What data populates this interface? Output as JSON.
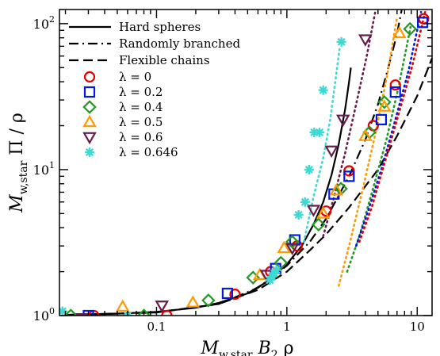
{
  "chart_data": {
    "type": "scatter",
    "xscale": "log",
    "yscale": "log",
    "xlim": [
      0.018,
      13
    ],
    "ylim": [
      1,
      125
    ],
    "grid": false,
    "legend_position": "top-left",
    "x_ticks": [
      {
        "value": 0.1,
        "label": "0.1"
      },
      {
        "value": 1,
        "label": "1"
      },
      {
        "value": 10,
        "label": "10"
      }
    ],
    "y_ticks": [
      {
        "value": 1,
        "base": "10",
        "exp": "0"
      },
      {
        "value": 10,
        "base": "10",
        "exp": "1"
      },
      {
        "value": 100,
        "base": "10",
        "exp": "2"
      }
    ],
    "xlabel": {
      "main": "M",
      "sub": "w,star",
      "rest1": " B",
      "sub2": "2",
      "rest2": " ρ"
    },
    "ylabel": {
      "main": "M",
      "sub": "w,star",
      "rest": " Π / ρ"
    },
    "lines": [
      {
        "name": "Hard spheres",
        "style": "solid",
        "x": [
          0.02,
          0.05,
          0.1,
          0.2,
          0.3,
          0.5,
          0.7,
          1.0,
          1.3,
          1.6,
          1.9,
          2.2,
          2.5,
          2.8,
          3.0,
          3.1
        ],
        "y": [
          1.01,
          1.03,
          1.06,
          1.13,
          1.22,
          1.42,
          1.7,
          2.25,
          3.0,
          4.2,
          6.0,
          9.2,
          15,
          26,
          40,
          50
        ]
      },
      {
        "name": "Randomly branched",
        "style": "dashdot",
        "x": [
          0.02,
          0.1,
          0.3,
          0.6,
          1.0,
          1.5,
          2.0,
          3.0,
          4.0,
          5.0,
          6.0,
          7.0,
          7.6
        ],
        "y": [
          1.01,
          1.05,
          1.2,
          1.55,
          2.2,
          3.2,
          4.6,
          9.0,
          16,
          28,
          50,
          85,
          125
        ]
      },
      {
        "name": "Flexible chains",
        "style": "dashed",
        "x": [
          0.02,
          0.1,
          0.3,
          0.6,
          1.0,
          1.5,
          2.0,
          3.0,
          5.0,
          7.0,
          10.0,
          13.0
        ],
        "y": [
          1.01,
          1.05,
          1.2,
          1.5,
          2.0,
          2.8,
          3.6,
          5.5,
          10,
          17,
          32,
          58
        ]
      }
    ],
    "series": [
      {
        "name": "0",
        "marker": "circle",
        "color": "#e60000",
        "x": [
          0.033,
          0.12,
          0.4,
          0.75,
          1.2,
          2.0,
          3.0,
          4.6,
          6.8,
          11.2
        ],
        "y": [
          1.0,
          1.0,
          1.4,
          2.0,
          3.0,
          5.2,
          9.8,
          20,
          38,
          108
        ]
      },
      {
        "name": "0.2",
        "marker": "square",
        "color": "#0019e6",
        "x": [
          0.03,
          0.35,
          0.82,
          1.15,
          2.3,
          3.0,
          5.3,
          6.8,
          11.0
        ],
        "y": [
          1.0,
          1.42,
          2.1,
          3.3,
          6.8,
          9.0,
          22,
          34,
          102
        ]
      },
      {
        "name": "0.4",
        "marker": "diamond",
        "color": "#229922",
        "x": [
          0.022,
          0.08,
          0.25,
          0.55,
          0.9,
          1.1,
          1.75,
          2.6,
          4.3,
          5.6,
          8.8
        ],
        "y": [
          1.0,
          1.0,
          1.27,
          1.82,
          2.3,
          3.2,
          4.2,
          7.4,
          18,
          29,
          92
        ]
      },
      {
        "name": "0.5",
        "marker": "triangle-up",
        "color": "#ff9900",
        "x": [
          0.055,
          0.19,
          0.62,
          0.95,
          1.9,
          2.4,
          4.0,
          5.6,
          7.3
        ],
        "y": [
          1.15,
          1.23,
          1.9,
          2.9,
          5.0,
          7.2,
          17,
          27,
          86
        ]
      },
      {
        "name": "0.6",
        "marker": "triangle-down",
        "color": "#6a1b4d",
        "x": [
          0.027,
          0.11,
          0.7,
          1.1,
          1.6,
          2.2,
          2.7,
          4.0
        ],
        "y": [
          0.96,
          1.17,
          1.9,
          2.9,
          5.3,
          13.5,
          22,
          78
        ]
      },
      {
        "name": "0.646",
        "marker": "asterisk",
        "color": "#3fd9d3",
        "x": [
          0.019,
          0.06,
          0.74,
          0.77,
          0.8,
          0.83,
          1.23,
          1.38,
          1.48,
          1.62,
          1.78,
          1.9,
          2.62
        ],
        "y": [
          1.07,
          1.0,
          1.75,
          1.85,
          1.95,
          2.05,
          4.9,
          6.0,
          10.0,
          18.0,
          18.0,
          35,
          75
        ]
      }
    ],
    "extrapolations": [
      {
        "series": "0.646",
        "style": "dotted",
        "color": "#3fd9d3",
        "x": [
          1.35,
          1.6,
          1.9,
          2.15,
          2.35,
          2.55
        ],
        "y": [
          3.2,
          6.5,
          12,
          22,
          40,
          70
        ]
      },
      {
        "series": "0.6",
        "style": "dotted",
        "color": "#6a1b4d",
        "x": [
          1.9,
          2.3,
          2.8,
          3.4,
          4.1,
          4.8
        ],
        "y": [
          3.5,
          6.5,
          13,
          28,
          60,
          125
        ]
      },
      {
        "series": "0.5",
        "style": "dotted",
        "color": "#ff9900",
        "x": [
          2.5,
          3.0,
          3.8,
          4.8,
          5.9,
          7.0
        ],
        "y": [
          1.6,
          3.0,
          7.2,
          18,
          45,
          110
        ]
      },
      {
        "series": "0.4",
        "style": "dotted",
        "color": "#229922",
        "x": [
          2.9,
          3.6,
          4.5,
          5.8,
          7.2,
          8.9
        ],
        "y": [
          2.0,
          3.5,
          7.0,
          16,
          37,
          95
        ]
      },
      {
        "series": "0.2",
        "style": "dotted",
        "color": "#0019e6",
        "x": [
          3.4,
          4.2,
          5.3,
          6.8,
          8.6,
          10.7
        ],
        "y": [
          3.0,
          5.2,
          10,
          22,
          48,
          120
        ]
      },
      {
        "series": "0",
        "style": "dotted",
        "color": "#e60000",
        "x": [
          3.6,
          4.5,
          5.6,
          7.2,
          9.2,
          11.5
        ],
        "y": [
          3.2,
          5.6,
          11,
          24,
          52,
          120
        ]
      }
    ],
    "legend": {
      "lines": [
        "Hard spheres",
        "Randomly branched",
        "Flexible chains"
      ],
      "lambda_symbol": "λ",
      "eq": " = "
    }
  }
}
